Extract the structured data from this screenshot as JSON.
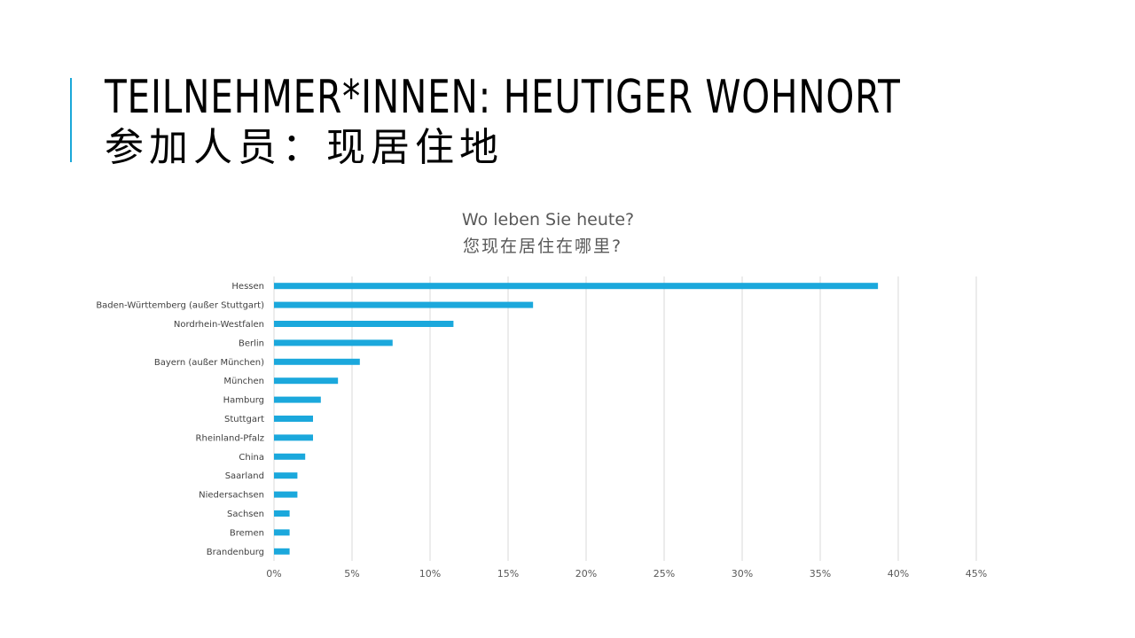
{
  "slide": {
    "title_de": "TEILNEHMER*INNEN: HEUTIGER WOHNORT",
    "title_zh": "参加人员：现居住地",
    "accent_color": "#1BA8D9"
  },
  "chart_data": {
    "type": "bar",
    "orientation": "horizontal",
    "title": "Wo leben Sie heute?",
    "subtitle": "您现在居住在哪里?",
    "categories": [
      "Hessen",
      "Baden-Württemberg (außer Stuttgart)",
      "Nordrhein-Westfalen",
      "Berlin",
      "Bayern (außer München)",
      "München",
      "Hamburg",
      "Stuttgart",
      "Rheinland-Pfalz",
      "China",
      "Saarland",
      "Niedersachsen",
      "Sachsen",
      "Bremen",
      "Brandenburg"
    ],
    "values": [
      38.7,
      16.6,
      11.5,
      7.6,
      5.5,
      4.1,
      3.0,
      2.5,
      2.5,
      2.0,
      1.5,
      1.5,
      1.0,
      1.0,
      1.0
    ],
    "xlim": [
      0,
      45
    ],
    "ticks": [
      "0%",
      "5%",
      "10%",
      "15%",
      "20%",
      "25%",
      "30%",
      "35%",
      "40%",
      "45%"
    ],
    "bar_color": "#1BA8DC",
    "grid": true,
    "legend": "none"
  }
}
